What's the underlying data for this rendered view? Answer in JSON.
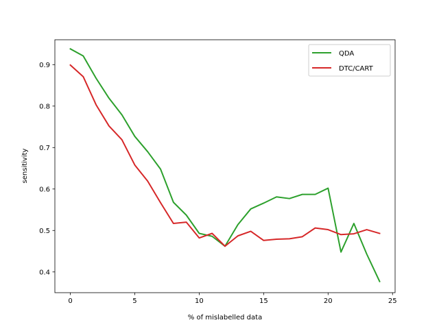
{
  "chart_data": {
    "type": "line",
    "title": "",
    "xlabel": "% of mislabelled data",
    "ylabel": "sensitivity",
    "xlim": [
      -1.2,
      25.2
    ],
    "ylim": [
      0.35,
      0.96
    ],
    "xticks": [
      0,
      5,
      10,
      15,
      20,
      25
    ],
    "yticks": [
      0.4,
      0.5,
      0.6,
      0.7,
      0.8,
      0.9
    ],
    "grid": false,
    "legend_position": "top-right",
    "x": [
      0,
      1,
      2,
      3,
      4,
      5,
      6,
      7,
      8,
      9,
      10,
      11,
      12,
      13,
      14,
      15,
      16,
      17,
      18,
      19,
      20,
      21,
      22,
      23,
      24
    ],
    "series": [
      {
        "name": "QDA",
        "color": "#2ca02c",
        "values": [
          0.938,
          0.921,
          0.867,
          0.819,
          0.779,
          0.727,
          0.69,
          0.648,
          0.568,
          0.537,
          0.493,
          0.486,
          0.462,
          0.514,
          0.552,
          0.566,
          0.581,
          0.577,
          0.587,
          0.587,
          0.602,
          0.448,
          0.517,
          0.443,
          0.377
        ]
      },
      {
        "name": "DTC/CART",
        "color": "#d62728",
        "values": [
          0.899,
          0.871,
          0.803,
          0.752,
          0.719,
          0.658,
          0.619,
          0.567,
          0.517,
          0.52,
          0.482,
          0.493,
          0.462,
          0.487,
          0.498,
          0.476,
          0.479,
          0.48,
          0.485,
          0.506,
          0.502,
          0.49,
          0.492,
          0.502,
          0.493
        ]
      }
    ]
  }
}
